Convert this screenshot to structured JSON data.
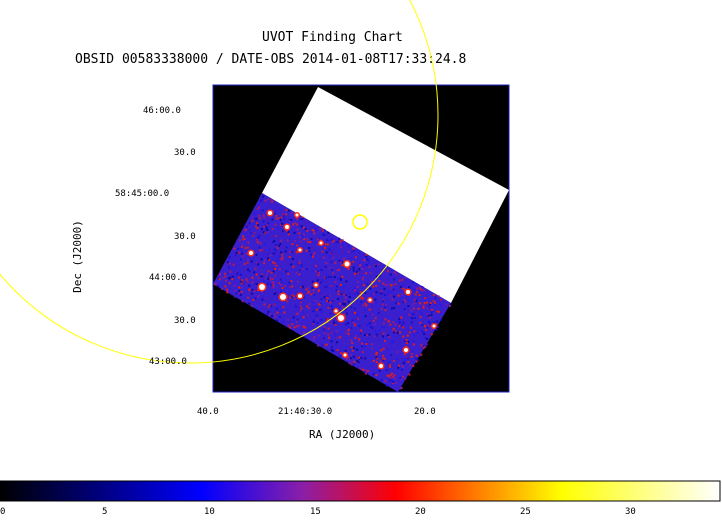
{
  "header": {
    "title": "UVOT Finding Chart",
    "subtitle": "OBSID 00583338000 / DATE-OBS 2014-01-08T17:33:24.8"
  },
  "axes": {
    "xlabel": "RA (J2000)",
    "ylabel": "Dec (J2000)",
    "dec_ticks": [
      "46:00.0",
      "30.0",
      "58:45:00.0",
      "30.0",
      "44:00.0",
      "30.0",
      "43:00.0"
    ],
    "ra_ticks": [
      "40.0",
      "21:40:30.0",
      "20.0"
    ]
  },
  "colorbar": {
    "ticks": [
      "0",
      "5",
      "10",
      "15",
      "20",
      "25",
      "30"
    ],
    "range": [
      0,
      34
    ]
  },
  "colors": {
    "frame": "#2020c0",
    "overlay": "#ffff00",
    "background": "#000000",
    "saturated": "#ffffff"
  }
}
